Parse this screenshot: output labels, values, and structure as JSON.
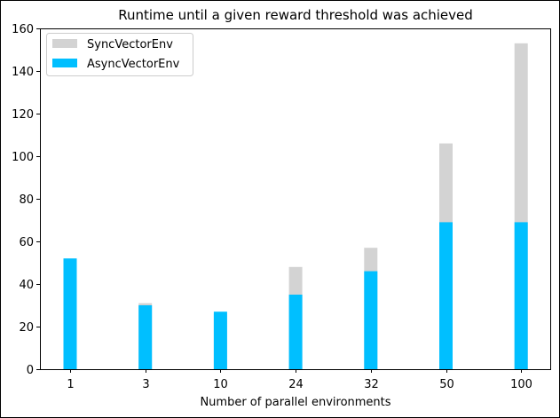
{
  "chart_data": {
    "type": "bar",
    "title": "Runtime until a given reward threshold was achieved",
    "xlabel": "Number of parallel environments",
    "ylabel": "",
    "categories": [
      "1",
      "3",
      "10",
      "24",
      "32",
      "50",
      "100"
    ],
    "ylim": [
      0,
      160
    ],
    "yticks": [
      0,
      20,
      40,
      60,
      80,
      100,
      120,
      140,
      160
    ],
    "grid": false,
    "legend_position": "top-left",
    "overlaid": true,
    "series": [
      {
        "name": "SyncVectorEnv",
        "color": "#d3d3d3",
        "values": [
          51,
          31,
          26,
          48,
          57,
          106,
          153
        ]
      },
      {
        "name": "AsyncVectorEnv",
        "color": "#00bfff",
        "values": [
          52,
          30,
          27,
          35,
          46,
          69,
          69
        ]
      }
    ]
  }
}
